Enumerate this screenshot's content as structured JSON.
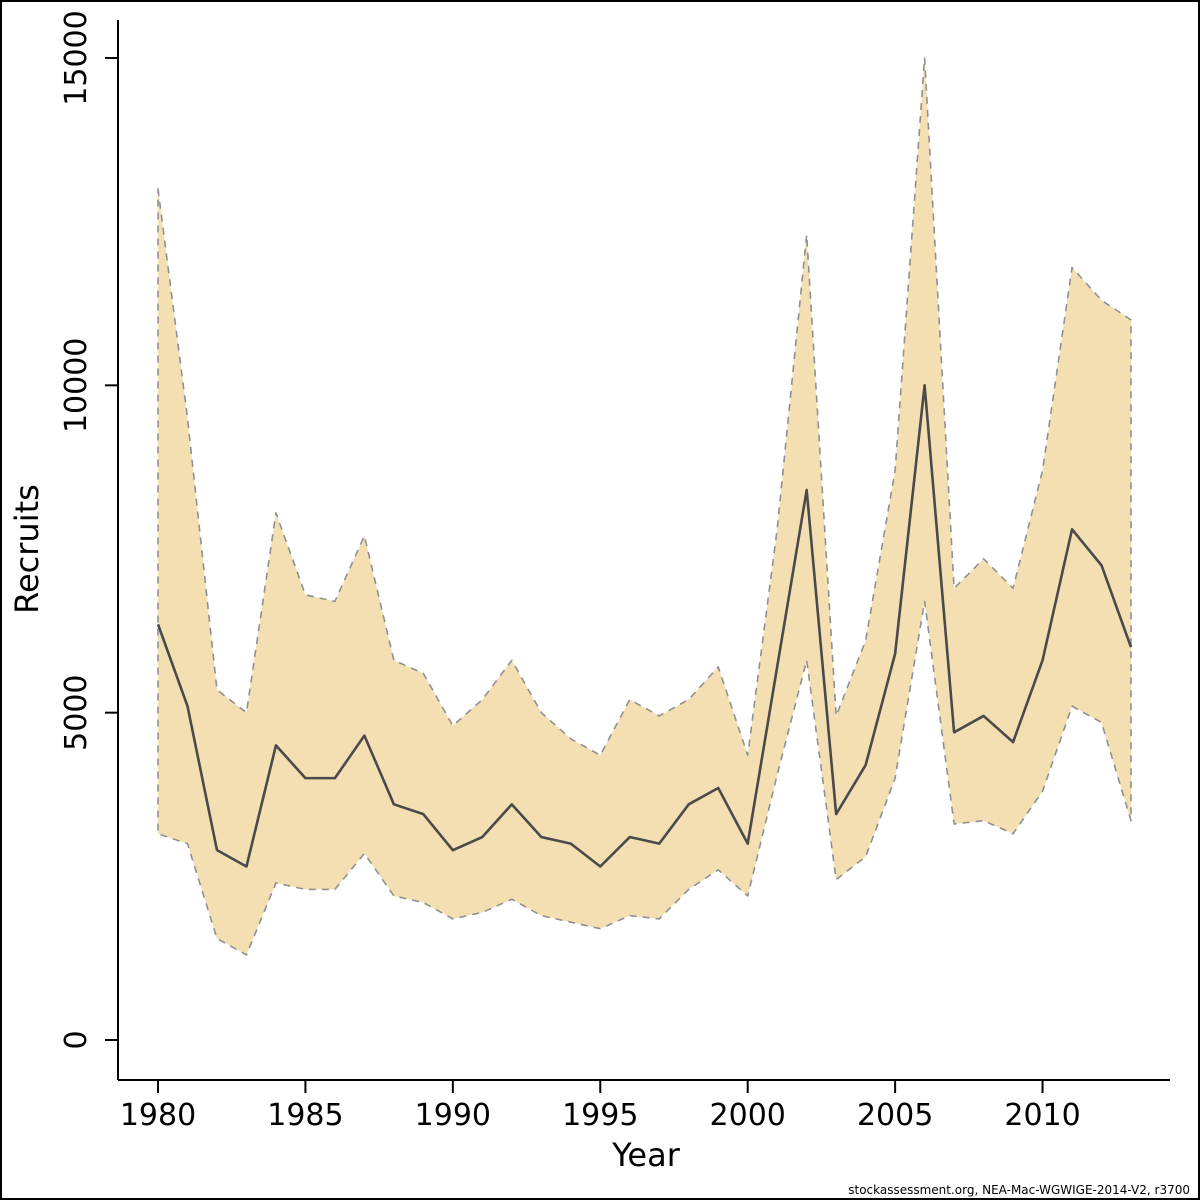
{
  "figure": {
    "footer": "stockassessment.org, NEA-Mac-WGWIGE-2014-V2, r3700"
  },
  "chart_data": {
    "type": "line",
    "title": "",
    "xlabel": "Year",
    "ylabel": "Recruits",
    "xlim": [
      1980,
      2013
    ],
    "ylim": [
      0,
      15000
    ],
    "xticks": [
      1980,
      1985,
      1990,
      1995,
      2000,
      2005,
      2010
    ],
    "yticks": [
      0,
      5000,
      10000,
      15000
    ],
    "grid": false,
    "legend": false,
    "band_fill": "#f3dfb2",
    "band_edge_color": "#909090",
    "line_color": "#4a4a4a",
    "x": [
      1980,
      1981,
      1982,
      1983,
      1984,
      1985,
      1986,
      1987,
      1988,
      1989,
      1990,
      1991,
      1992,
      1993,
      1994,
      1995,
      1996,
      1997,
      1998,
      1999,
      2000,
      2001,
      2002,
      2003,
      2004,
      2005,
      2006,
      2007,
      2008,
      2009,
      2010,
      2011,
      2012,
      2013
    ],
    "series": [
      {
        "name": "recruits_estimate",
        "values": [
          6350,
          5100,
          2900,
          2650,
          4500,
          4000,
          4000,
          4650,
          3600,
          3450,
          2900,
          3100,
          3600,
          3100,
          3000,
          2650,
          3100,
          3000,
          3600,
          3850,
          3000,
          5700,
          8400,
          3450,
          4200,
          5900,
          10000,
          4700,
          4950,
          4550,
          5800,
          7800,
          7250,
          6000
        ]
      },
      {
        "name": "upper_confidence_bound",
        "values": [
          13000,
          9500,
          5350,
          5000,
          8050,
          6800,
          6700,
          7700,
          5800,
          5600,
          4800,
          5200,
          5800,
          5000,
          4600,
          4350,
          5200,
          4950,
          5200,
          5700,
          4350,
          7800,
          12300,
          4950,
          6100,
          8700,
          15000,
          6900,
          7350,
          6900,
          8700,
          11800,
          11300,
          11000
        ]
      },
      {
        "name": "lower_confidence_bound",
        "values": [
          3150,
          3000,
          1550,
          1300,
          2400,
          2300,
          2300,
          2850,
          2200,
          2100,
          1850,
          1950,
          2150,
          1900,
          1800,
          1700,
          1900,
          1850,
          2300,
          2600,
          2200,
          4050,
          5800,
          2450,
          2800,
          4000,
          6700,
          3300,
          3350,
          3150,
          3800,
          5100,
          4850,
          3350
        ]
      }
    ]
  }
}
